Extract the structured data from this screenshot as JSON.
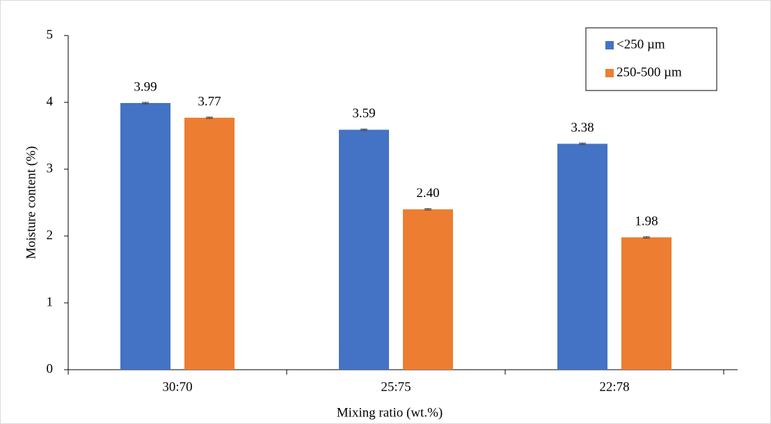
{
  "chart_data": {
    "type": "bar",
    "x_label": "Mixing ratio (wt.%)",
    "y_label": "Moisture content (%)",
    "categories": [
      "30:70",
      "25:75",
      "22:78"
    ],
    "series": [
      {
        "name": "<250 µm",
        "color": "#4472c4",
        "values": [
          3.99,
          3.59,
          3.38
        ],
        "value_labels": [
          "3.99",
          "3.59",
          "3.38"
        ],
        "errors": [
          0.01,
          0.01,
          0.01
        ]
      },
      {
        "name": "250-500 µm",
        "color": "#ed7d31",
        "values": [
          3.77,
          2.4,
          1.98
        ],
        "value_labels": [
          "3.77",
          "2.40",
          "1.98"
        ],
        "errors": [
          0.01,
          0.01,
          0.01
        ]
      }
    ],
    "ylim": [
      0,
      5
    ],
    "yticks": [
      0,
      1,
      2,
      3,
      4,
      5
    ],
    "legend": "top-right"
  }
}
